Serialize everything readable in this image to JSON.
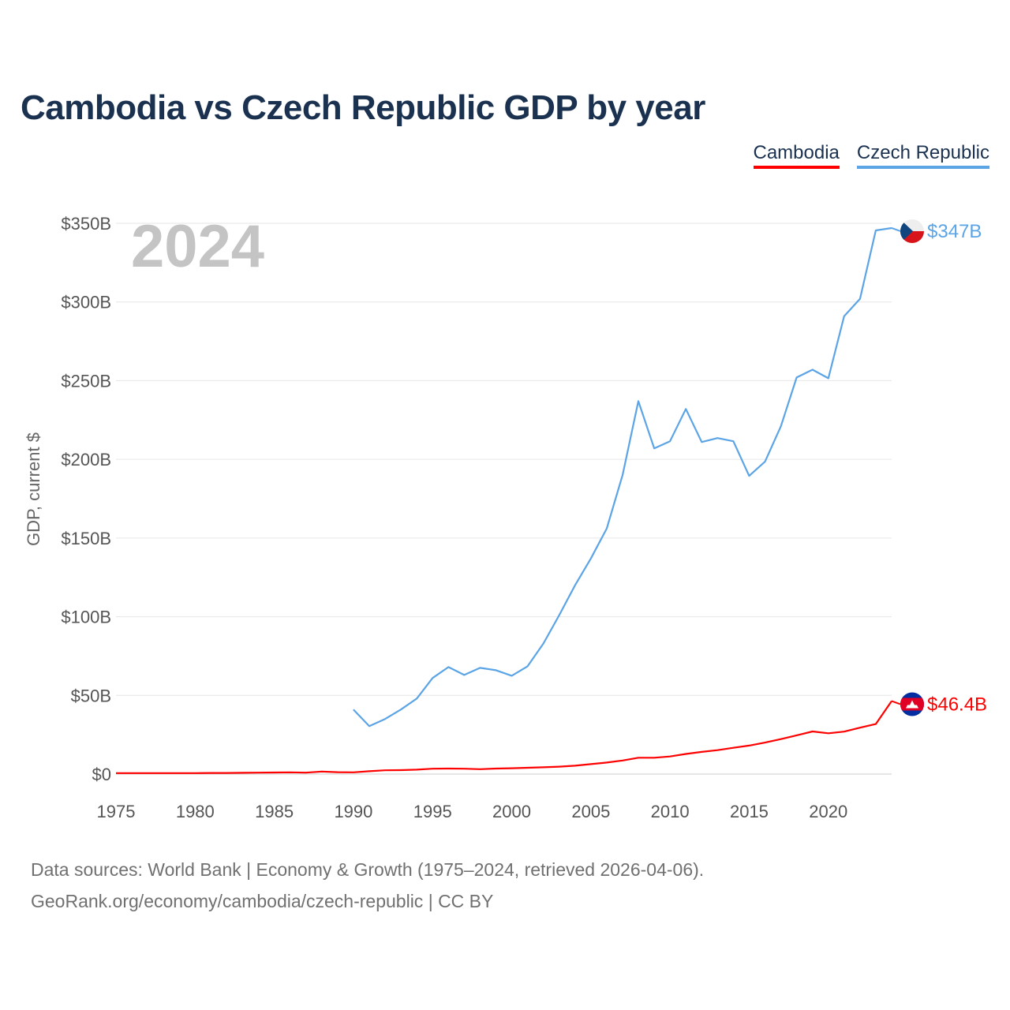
{
  "title": "Cambodia vs Czech Republic GDP by year",
  "legend": [
    {
      "label": "Cambodia",
      "color": "#ff0000"
    },
    {
      "label": "Czech Republic",
      "color": "#5ba4e6"
    }
  ],
  "footer": {
    "line1": "Data sources: World Bank | Economy & Growth (1975–2024, retrieved 2026-04-06).",
    "line2": "GeoRank.org/economy/cambodia/czech-republic | CC BY"
  },
  "chart_data": {
    "type": "line",
    "title": "Cambodia vs Czech Republic GDP by year",
    "xlabel": "",
    "ylabel": "GDP, current $",
    "highlight_year": "2024",
    "xlim": [
      1975,
      2024
    ],
    "ylim": [
      0,
      350
    ],
    "y_unit": "billion USD",
    "x_ticks": [
      "1975",
      "1980",
      "1985",
      "1990",
      "1995",
      "2000",
      "2005",
      "2010",
      "2015",
      "2020"
    ],
    "y_ticks": [
      {
        "value": 0,
        "label": "$0"
      },
      {
        "value": 50,
        "label": "$50B"
      },
      {
        "value": 100,
        "label": "$100B"
      },
      {
        "value": 150,
        "label": "$150B"
      },
      {
        "value": 200,
        "label": "$200B"
      },
      {
        "value": 250,
        "label": "$250B"
      },
      {
        "value": 300,
        "label": "$300B"
      },
      {
        "value": 350,
        "label": "$350B"
      }
    ],
    "series": [
      {
        "name": "Cambodia",
        "color": "#ff0000",
        "flag": "cambodia-flag-icon",
        "end_label": "$46.4B",
        "x": [
          1975,
          1976,
          1977,
          1978,
          1979,
          1980,
          1981,
          1982,
          1983,
          1984,
          1985,
          1986,
          1987,
          1988,
          1989,
          1990,
          1991,
          1992,
          1993,
          1994,
          1995,
          1996,
          1997,
          1998,
          1999,
          2000,
          2001,
          2002,
          2003,
          2004,
          2005,
          2006,
          2007,
          2008,
          2009,
          2010,
          2011,
          2012,
          2013,
          2014,
          2015,
          2016,
          2017,
          2018,
          2019,
          2020,
          2021,
          2022,
          2023,
          2024
        ],
        "values": [
          0.6,
          0.6,
          0.6,
          0.6,
          0.6,
          0.6,
          0.7,
          0.7,
          0.8,
          0.9,
          1.0,
          1.1,
          0.9,
          1.6,
          1.2,
          1.1,
          1.8,
          2.4,
          2.5,
          2.8,
          3.4,
          3.5,
          3.4,
          3.1,
          3.5,
          3.7,
          4.0,
          4.3,
          4.7,
          5.3,
          6.3,
          7.3,
          8.6,
          10.4,
          10.4,
          11.2,
          12.8,
          14.1,
          15.2,
          16.7,
          18.1,
          20.0,
          22.2,
          24.6,
          27.1,
          25.9,
          27.0,
          29.5,
          31.8,
          46.4
        ]
      },
      {
        "name": "Czech Republic",
        "color": "#5ba4e6",
        "flag": "czech-flag-icon",
        "end_label": "$347B",
        "x": [
          1990,
          1991,
          1992,
          1993,
          1994,
          1995,
          1996,
          1997,
          1998,
          1999,
          2000,
          2001,
          2002,
          2003,
          2004,
          2005,
          2006,
          2007,
          2008,
          2009,
          2010,
          2011,
          2012,
          2013,
          2014,
          2015,
          2016,
          2017,
          2018,
          2019,
          2020,
          2021,
          2022,
          2023,
          2024
        ],
        "values": [
          41,
          30.5,
          35,
          41,
          48,
          61,
          68,
          63,
          67.5,
          66,
          62.5,
          68.5,
          83,
          101,
          120,
          137,
          156,
          190,
          237,
          207,
          211.5,
          232,
          211,
          213.5,
          211.5,
          189.5,
          198.5,
          221,
          252,
          257,
          251.5,
          291,
          302,
          345.5,
          347
        ]
      }
    ]
  }
}
